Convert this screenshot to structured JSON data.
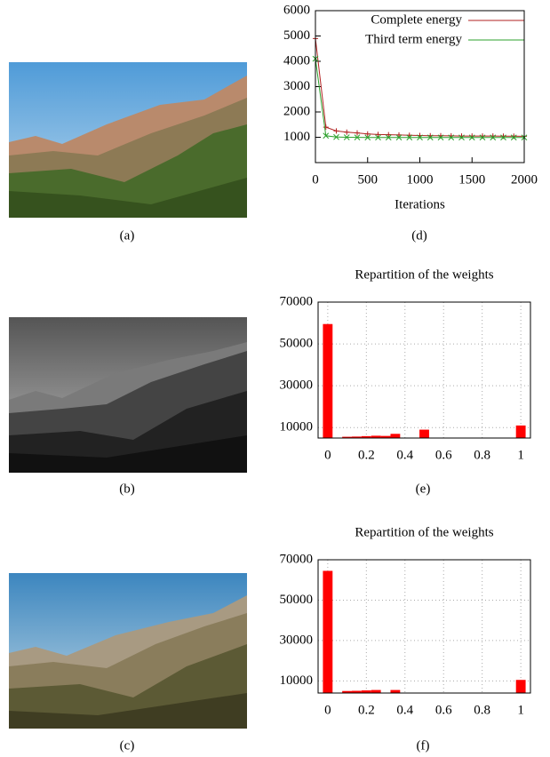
{
  "captions": [
    "(a)",
    "(b)",
    "(c)",
    "(d)",
    "(e)",
    "(f)"
  ],
  "chart_data": [
    {
      "type": "line",
      "xlabel": "Iterations",
      "x": [
        0,
        100,
        200,
        300,
        400,
        500,
        600,
        700,
        800,
        900,
        1000,
        1100,
        1200,
        1300,
        1400,
        1500,
        1600,
        1700,
        1800,
        1900,
        2000
      ],
      "series": [
        {
          "name": "Complete energy",
          "color": "#b22222",
          "marker": "plus",
          "values": [
            4900,
            1400,
            1250,
            1200,
            1170,
            1130,
            1110,
            1100,
            1090,
            1080,
            1070,
            1060,
            1060,
            1055,
            1050,
            1050,
            1050,
            1050,
            1045,
            1045,
            1040
          ]
        },
        {
          "name": "Third term energy",
          "color": "#2ca02c",
          "marker": "cross",
          "values": [
            4100,
            1060,
            1010,
            1000,
            995,
            990,
            990,
            990,
            990,
            990,
            990,
            990,
            990,
            990,
            990,
            990,
            990,
            990,
            990,
            990,
            990
          ]
        }
      ],
      "xlim": [
        0,
        2000
      ],
      "xticks": [
        0,
        500,
        1000,
        1500,
        2000
      ],
      "ylim": [
        0,
        6000
      ],
      "yticks": [
        1000,
        2000,
        3000,
        4000,
        5000,
        6000
      ],
      "grid": false,
      "legend": "top-right"
    },
    {
      "type": "histogram",
      "title": "Repartition of the weights",
      "color": "#ff0000",
      "bins": [
        -0.025,
        0.025,
        0.075,
        0.125,
        0.175,
        0.225,
        0.275,
        0.325,
        0.375,
        0.425,
        0.475,
        0.525,
        0.575,
        0.625,
        0.675,
        0.725,
        0.775,
        0.825,
        0.875,
        0.925,
        0.975,
        1.025
      ],
      "values": [
        59500,
        0,
        5600,
        5700,
        5900,
        6100,
        6000,
        7000,
        0,
        0,
        9000,
        0,
        0,
        0,
        0,
        0,
        0,
        0,
        0,
        0,
        11000
      ],
      "xlim": [
        -0.05,
        1.05
      ],
      "xticks": [
        0,
        0.2,
        0.4,
        0.6,
        0.8,
        1
      ],
      "ylim": [
        5000,
        70000
      ],
      "yticks": [
        10000,
        30000,
        50000,
        70000
      ],
      "grid": true
    },
    {
      "type": "histogram",
      "title": "Repartition of the weights",
      "color": "#ff0000",
      "bins": [
        -0.025,
        0.025,
        0.075,
        0.125,
        0.175,
        0.225,
        0.275,
        0.325,
        0.375,
        0.425,
        0.475,
        0.525,
        0.575,
        0.625,
        0.675,
        0.725,
        0.775,
        0.825,
        0.875,
        0.925,
        0.975,
        1.025
      ],
      "values": [
        64500,
        0,
        5000,
        5100,
        5300,
        5500,
        0,
        5500,
        0,
        0,
        0,
        0,
        0,
        0,
        0,
        0,
        0,
        0,
        0,
        0,
        10500
      ],
      "xlim": [
        -0.05,
        1.05
      ],
      "xticks": [
        0,
        0.2,
        0.4,
        0.6,
        0.8,
        1
      ],
      "ylim": [
        4000,
        70000
      ],
      "yticks": [
        10000,
        30000,
        50000,
        70000
      ],
      "grid": true
    }
  ]
}
